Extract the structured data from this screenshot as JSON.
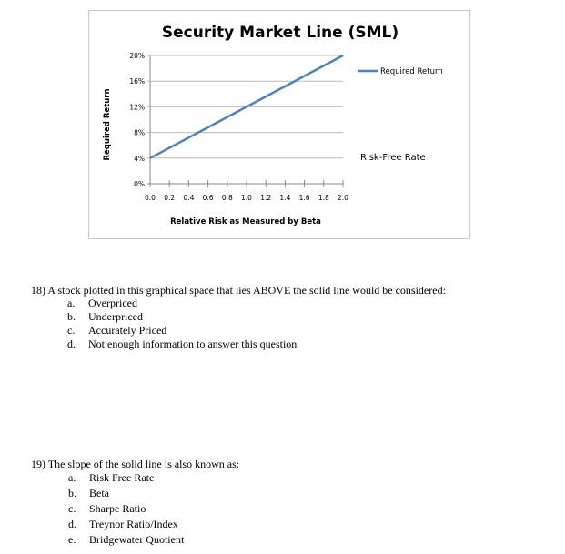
{
  "chart_data": {
    "type": "line",
    "title": "Security Market Line (SML)",
    "xlabel": "Relative Risk as Measured by Beta",
    "ylabel": "Required Return",
    "x_ticks": [
      "0.0",
      "0.2",
      "0.4",
      "0.6",
      "0.8",
      "1.0",
      "1.2",
      "1.4",
      "1.6",
      "1.8",
      "2.0"
    ],
    "y_ticks": [
      "0%",
      "4%",
      "8%",
      "12%",
      "16%",
      "20%"
    ],
    "xlim": [
      0,
      2
    ],
    "ylim": [
      0,
      20
    ],
    "grid": true,
    "legend_placement": "right",
    "series": [
      {
        "name": "Required Return",
        "x": [
          0,
          2
        ],
        "y": [
          4,
          20
        ],
        "color": "#4f81bd"
      }
    ],
    "annotations": [
      "Risk-Free Rate"
    ]
  },
  "questions": [
    {
      "text": "18) A stock plotted in this graphical space that lies ABOVE the solid line would be considered:",
      "options": [
        {
          "letter": "a.",
          "text": "Overpriced"
        },
        {
          "letter": "b.",
          "text": "Underpriced"
        },
        {
          "letter": "c.",
          "text": "Accurately Priced"
        },
        {
          "letter": "d.",
          "text": "Not enough information to answer this question"
        }
      ]
    },
    {
      "text": "19) The slope of the solid line is also known as:",
      "options": [
        {
          "letter": "a.",
          "text": "Risk Free Rate"
        },
        {
          "letter": "b.",
          "text": "Beta"
        },
        {
          "letter": "c.",
          "text": "Sharpe Ratio"
        },
        {
          "letter": "d.",
          "text": "Treynor Ratio/Index"
        },
        {
          "letter": "e.",
          "text": "Bridgewater Quotient"
        }
      ]
    }
  ]
}
